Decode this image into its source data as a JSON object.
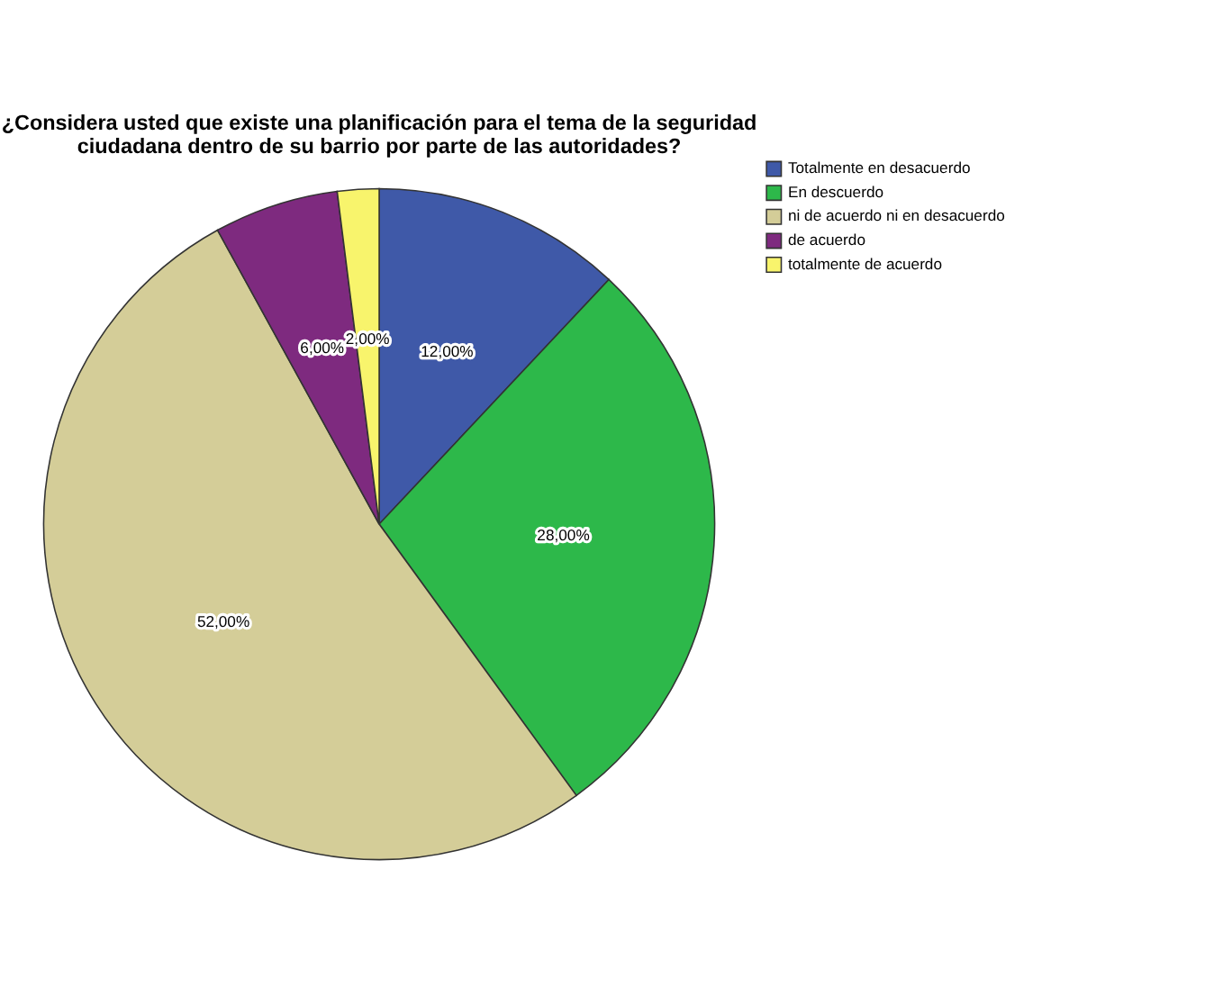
{
  "chart_data": {
    "type": "pie",
    "title": "¿Considera usted que existe una planificación para el tema de la seguridad\nciudadana dentro de su barrio por parte de las autoridades?",
    "categories": [
      "Totalmente en desacuerdo",
      "En descuerdo",
      "ni de acuerdo ni en desacuerdo",
      "de acuerdo",
      "totalmente de acuerdo"
    ],
    "values": [
      12,
      28,
      52,
      6,
      2
    ],
    "colors": [
      "#3f59a8",
      "#2db84a",
      "#d4cd98",
      "#7e2a7f",
      "#f8f46c"
    ],
    "value_labels": [
      "12,00%",
      "28,00%",
      "52,00%",
      "6,00%",
      "2,00%"
    ],
    "legend": "top right"
  }
}
